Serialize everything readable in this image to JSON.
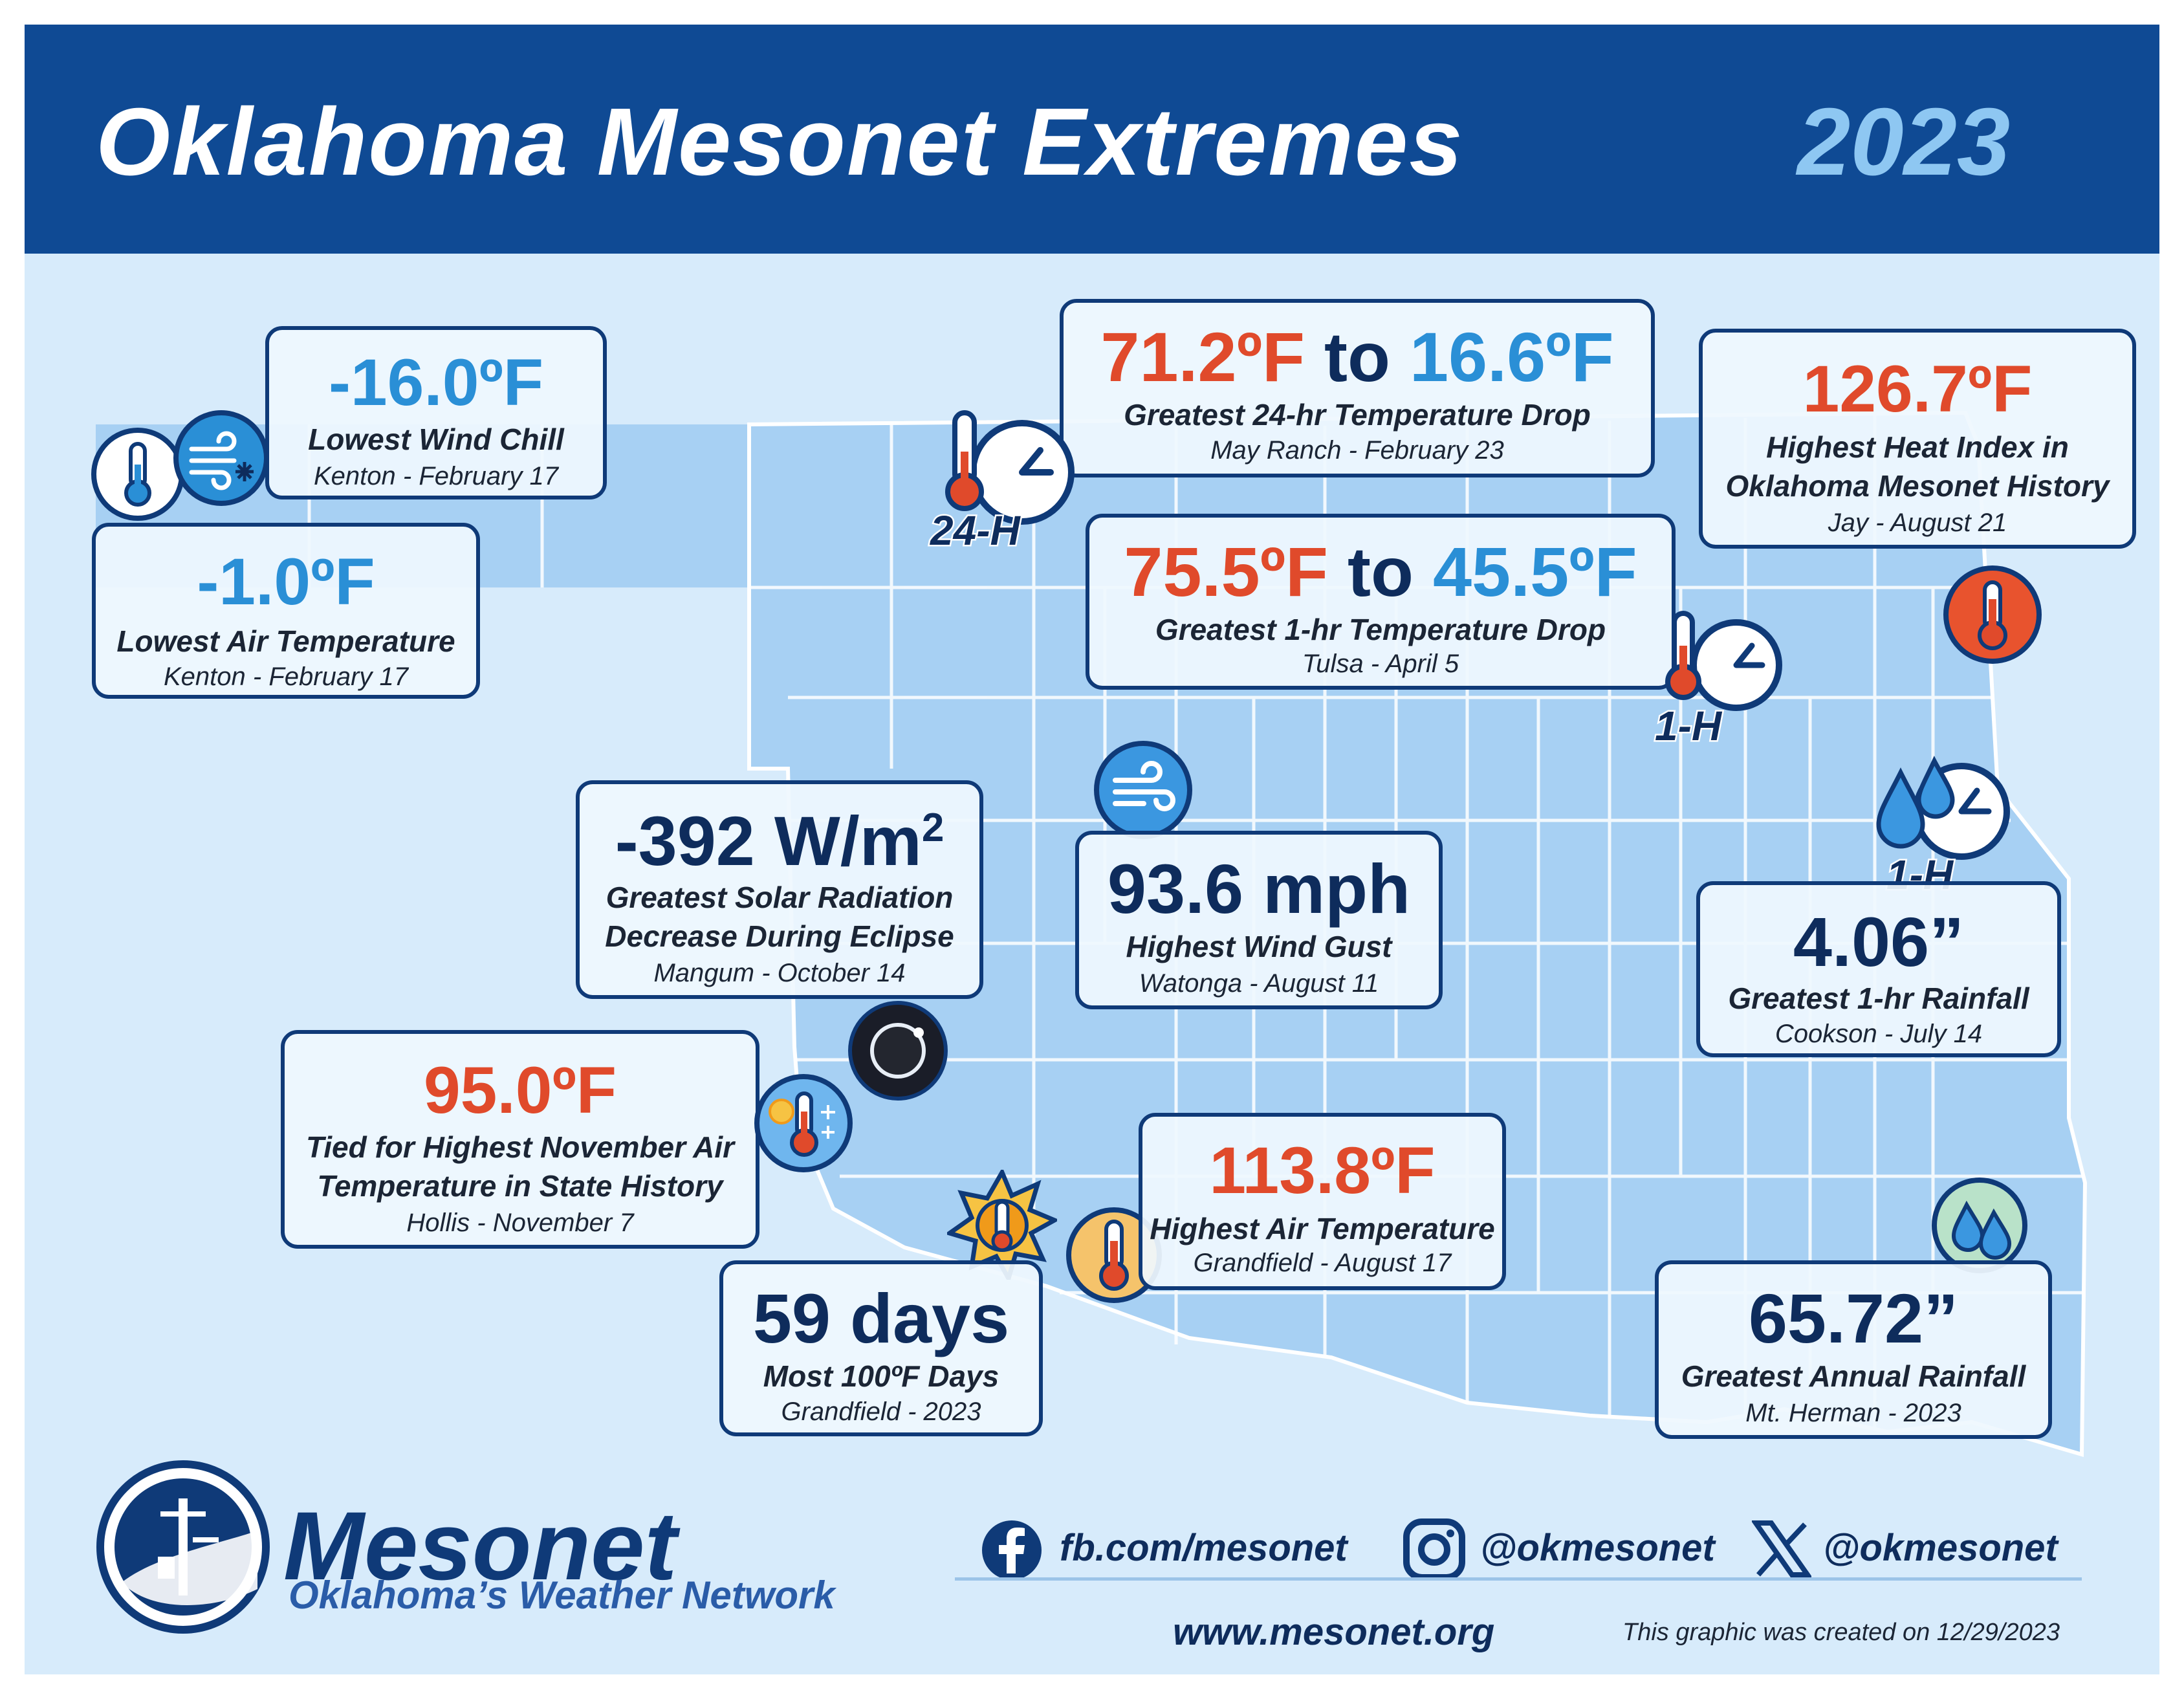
{
  "header": {
    "title": "Oklahoma Mesonet Extremes",
    "year": "2023"
  },
  "extremes": {
    "wind_chill": {
      "value": "-16.0ºF",
      "label": "Lowest Wind Chill",
      "detail": "Kenton - February 17"
    },
    "air_temp_low": {
      "value": "-1.0ºF",
      "label": "Lowest Air Temperature",
      "detail": "Kenton - February 17"
    },
    "drop_24hr": {
      "from": "71.2ºF",
      "connector": "to",
      "to": "16.6ºF",
      "label": "Greatest 24-hr Temperature Drop",
      "detail": "May Ranch - February 23",
      "tag": "24-H"
    },
    "drop_1hr": {
      "from": "75.5ºF",
      "connector": "to",
      "to": "45.5ºF",
      "label": "Greatest 1-hr Temperature Drop",
      "detail": "Tulsa - April 5",
      "tag": "1-H"
    },
    "heat_index": {
      "value": "126.7ºF",
      "label_line1": "Highest Heat Index in",
      "label_line2": "Oklahoma Mesonet History",
      "detail": "Jay - August 21"
    },
    "solar": {
      "value": "-392 W/m",
      "superscript": "2",
      "label_line1": "Greatest Solar Radiation",
      "label_line2": "Decrease During Eclipse",
      "detail": "Mangum - October 14"
    },
    "wind_gust": {
      "value": "93.6 mph",
      "label": "Highest Wind Gust",
      "detail": "Watonga - August 11"
    },
    "rain_1hr": {
      "value": "4.06”",
      "label": "Greatest 1-hr Rainfall",
      "detail": "Cookson - July 14",
      "tag": "1-H"
    },
    "november": {
      "value": "95.0ºF",
      "label_line1": "Tied for Highest November Air",
      "label_line2": "Temperature in State History",
      "detail": "Hollis - November 7"
    },
    "air_temp_high": {
      "value": "113.8ºF",
      "label": "Highest Air Temperature",
      "detail": "Grandfield - August 17"
    },
    "days_100": {
      "value": "59 days",
      "label": "Most 100ºF Days",
      "detail": "Grandfield - 2023"
    },
    "annual_rain": {
      "value": "65.72”",
      "label": "Greatest Annual Rainfall",
      "detail": "Mt. Herman - 2023"
    }
  },
  "footer": {
    "logo_word": "Mesonet",
    "logo_tagline": "Oklahoma’s Weather Network",
    "facebook": "fb.com/mesonet",
    "instagram": "@okmesonet",
    "x": "@okmesonet",
    "website": "www.mesonet.org",
    "created": "This graphic was created on 12/29/2023"
  },
  "colors": {
    "header_bg": "#0f4a94",
    "background": "#d7ebfb",
    "state_fill": "#a7d0f3",
    "hot_red": "#e04a2b",
    "cold_blue": "#2a8fd6",
    "navy": "#0e2c5c"
  },
  "icons": [
    "thermometer-icon",
    "wind-chill-icon",
    "clock-icon",
    "thermometer-hot-icon",
    "wind-icon",
    "eclipse-icon",
    "sun-snow-thermometer-icon",
    "sun-icon",
    "raindrop-icon",
    "facebook-icon",
    "instagram-icon",
    "x-icon",
    "mesonet-tower-logo"
  ]
}
